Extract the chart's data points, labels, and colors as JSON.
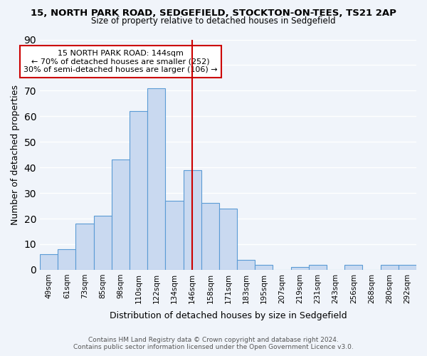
{
  "title_line1": "15, NORTH PARK ROAD, SEDGEFIELD, STOCKTON-ON-TEES, TS21 2AP",
  "title_line2": "Size of property relative to detached houses in Sedgefield",
  "xlabel": "Distribution of detached houses by size in Sedgefield",
  "ylabel": "Number of detached properties",
  "bar_labels": [
    "49sqm",
    "61sqm",
    "73sqm",
    "85sqm",
    "98sqm",
    "110sqm",
    "122sqm",
    "134sqm",
    "146sqm",
    "158sqm",
    "171sqm",
    "183sqm",
    "195sqm",
    "207sqm",
    "219sqm",
    "231sqm",
    "243sqm",
    "256sqm",
    "268sqm",
    "280sqm",
    "292sqm"
  ],
  "bar_values": [
    6,
    8,
    18,
    21,
    43,
    62,
    71,
    27,
    39,
    26,
    24,
    4,
    2,
    0,
    1,
    2,
    0,
    2,
    0,
    2,
    2
  ],
  "bar_color": "#c9d9f0",
  "bar_edgecolor": "#5b9bd5",
  "vline_x": 8,
  "vline_color": "#cc0000",
  "annotation_title": "15 NORTH PARK ROAD: 144sqm",
  "annotation_line1": "← 70% of detached houses are smaller (252)",
  "annotation_line2": "30% of semi-detached houses are larger (106) →",
  "annotation_box_color": "#ffffff",
  "annotation_box_edgecolor": "#cc0000",
  "ylim": [
    0,
    90
  ],
  "yticks": [
    0,
    10,
    20,
    30,
    40,
    50,
    60,
    70,
    80,
    90
  ],
  "footer_line1": "Contains HM Land Registry data © Crown copyright and database right 2024.",
  "footer_line2": "Contains public sector information licensed under the Open Government Licence v3.0.",
  "bg_color": "#f0f4fa"
}
